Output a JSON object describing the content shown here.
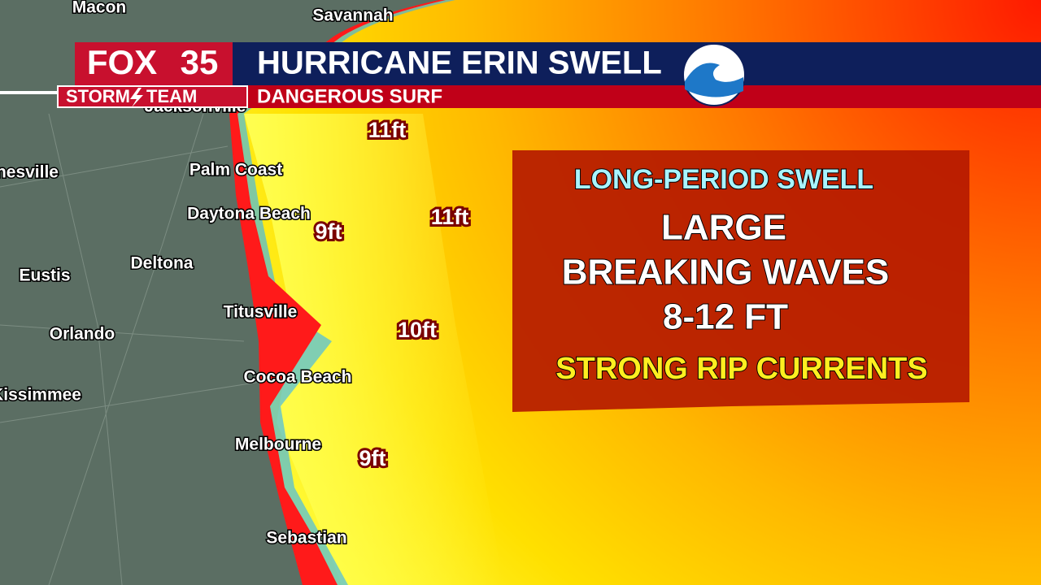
{
  "header": {
    "brand": "FOX",
    "channel": "35",
    "team": "STORM",
    "team_end": "TEAM",
    "title": "HURRICANE ERIN SWELL",
    "subtitle": "DANGEROUS SURF"
  },
  "cities": [
    "Macon",
    "Savannah",
    "Jacksonville",
    "Gainesville",
    "Palm Coast",
    "Daytona Beach",
    "Deltona",
    "Eustis",
    "Titusville",
    "Orlando",
    "Kissimmee",
    "Cocoa Beach",
    "Melbourne",
    "Sebastian"
  ],
  "wave_heights": [
    "11ft",
    "11ft",
    "9ft",
    "10ft",
    "9ft"
  ],
  "info_box": {
    "heading": "LONG-PERIOD SWELL",
    "lines": [
      "LARGE",
      "BREAKING WAVES",
      "8-12 FT"
    ],
    "warning": "STRONG RIP CURRENTS"
  }
}
